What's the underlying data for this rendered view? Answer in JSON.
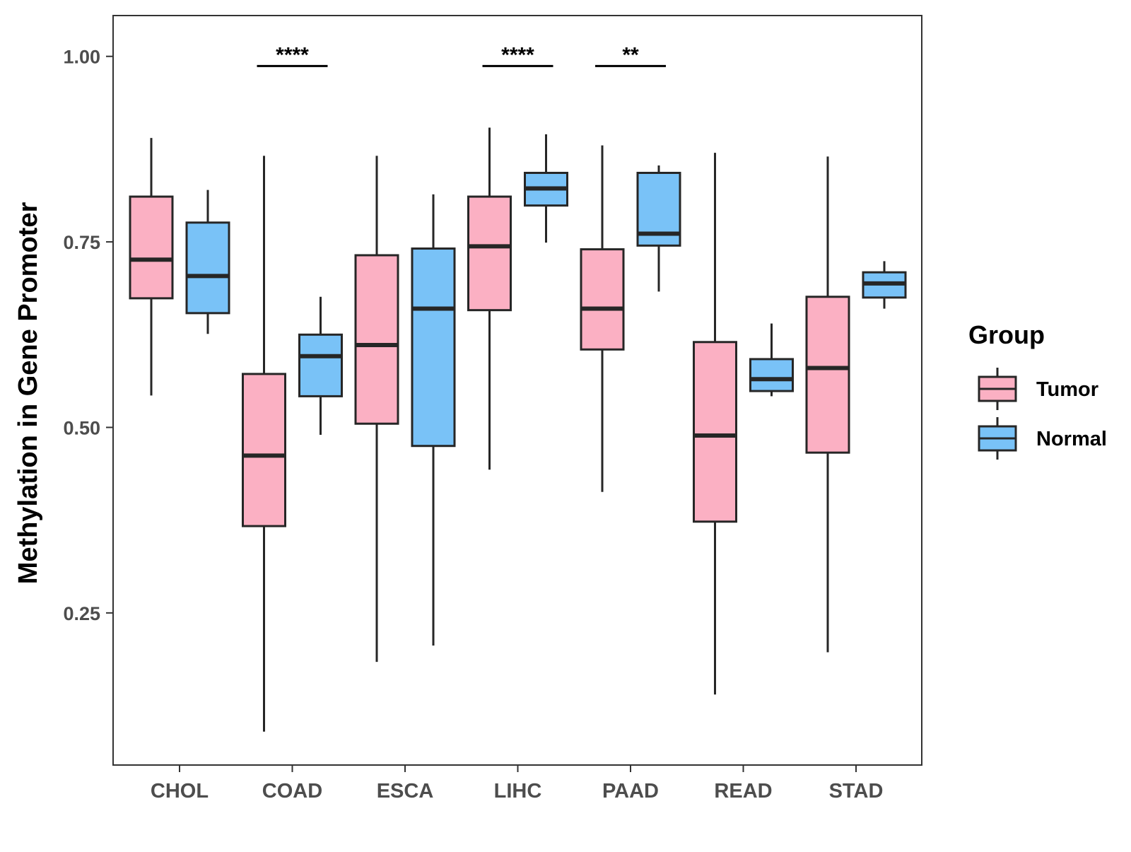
{
  "chart_data": {
    "type": "boxplot",
    "title": "",
    "xlabel": "",
    "ylabel": "Methylation in Gene Promoter",
    "ylim": [
      0.045,
      1.055
    ],
    "yticks": [
      0.25,
      0.5,
      0.75,
      1.0
    ],
    "ytick_labels": [
      "0.25",
      "0.50",
      "0.75",
      "1.00"
    ],
    "grid": false,
    "categories": [
      "CHOL",
      "COAD",
      "ESCA",
      "LIHC",
      "PAAD",
      "READ",
      "STAD"
    ],
    "series": [
      {
        "name": "Tumor",
        "color": "#fbb0c3",
        "boxes": [
          {
            "min": 0.543,
            "q1": 0.674,
            "median": 0.726,
            "q3": 0.811,
            "max": 0.89
          },
          {
            "min": 0.09,
            "q1": 0.367,
            "median": 0.462,
            "q3": 0.572,
            "max": 0.866
          },
          {
            "min": 0.184,
            "q1": 0.505,
            "median": 0.611,
            "q3": 0.732,
            "max": 0.866
          },
          {
            "min": 0.443,
            "q1": 0.658,
            "median": 0.744,
            "q3": 0.811,
            "max": 0.904
          },
          {
            "min": 0.413,
            "q1": 0.605,
            "median": 0.66,
            "q3": 0.74,
            "max": 0.88
          },
          {
            "min": 0.14,
            "q1": 0.373,
            "median": 0.489,
            "q3": 0.615,
            "max": 0.87
          },
          {
            "min": 0.197,
            "q1": 0.466,
            "median": 0.58,
            "q3": 0.676,
            "max": 0.865
          }
        ]
      },
      {
        "name": "Normal",
        "color": "#79c2f7",
        "boxes": [
          {
            "min": 0.626,
            "q1": 0.654,
            "median": 0.704,
            "q3": 0.776,
            "max": 0.82
          },
          {
            "min": 0.49,
            "q1": 0.542,
            "median": 0.596,
            "q3": 0.625,
            "max": 0.676
          },
          {
            "min": 0.206,
            "q1": 0.475,
            "median": 0.66,
            "q3": 0.741,
            "max": 0.814
          },
          {
            "min": 0.749,
            "q1": 0.799,
            "median": 0.822,
            "q3": 0.843,
            "max": 0.895
          },
          {
            "min": 0.683,
            "q1": 0.745,
            "median": 0.761,
            "q3": 0.843,
            "max": 0.853
          },
          {
            "min": 0.542,
            "q1": 0.549,
            "median": 0.565,
            "q3": 0.592,
            "max": 0.64
          },
          {
            "min": 0.66,
            "q1": 0.675,
            "median": 0.694,
            "q3": 0.709,
            "max": 0.724
          }
        ]
      }
    ],
    "annotations": [
      {
        "category": "COAD",
        "label": "****",
        "y": 0.987
      },
      {
        "category": "LIHC",
        "label": "****",
        "y": 0.987
      },
      {
        "category": "PAAD",
        "label": "**",
        "y": 0.987
      }
    ],
    "legend": {
      "title": "Group",
      "placement": "right",
      "entries": [
        "Tumor",
        "Normal"
      ]
    }
  }
}
